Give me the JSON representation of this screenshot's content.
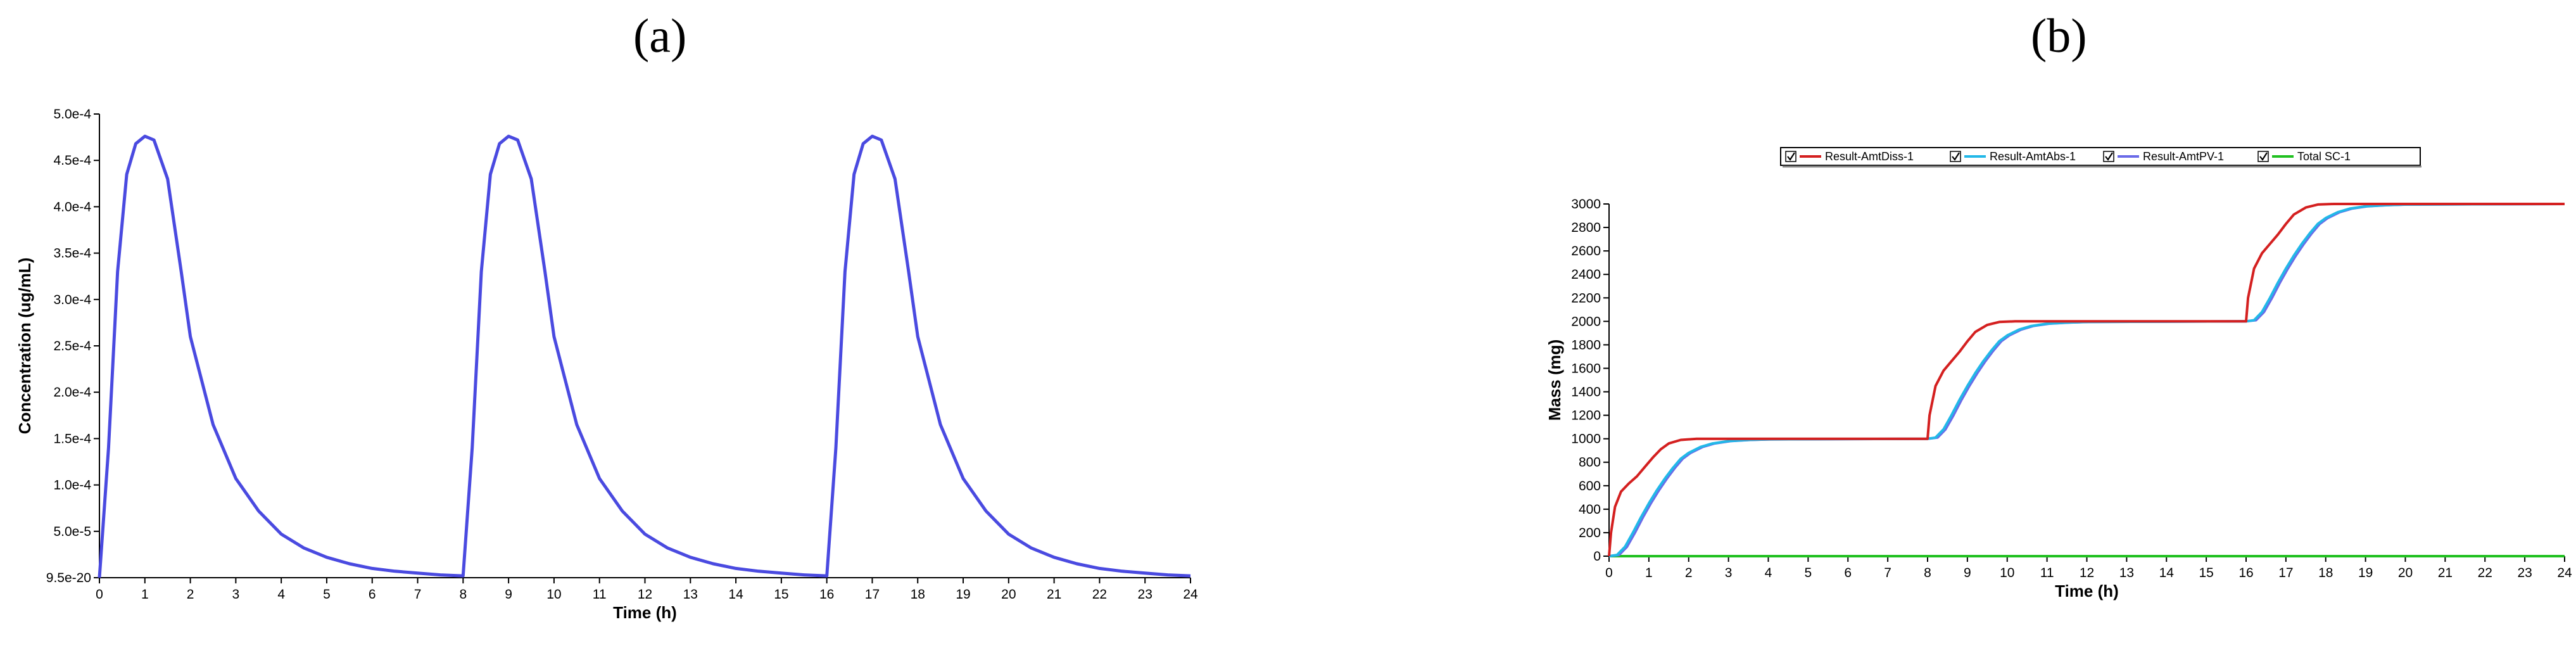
{
  "panels": {
    "a": {
      "label": "(a)"
    },
    "b": {
      "label": "(b)"
    }
  },
  "chart_data": [
    {
      "id": "a",
      "type": "line",
      "xlabel": "Time (h)",
      "ylabel": "Concentration (ug/mL)",
      "xlim": [
        0,
        24
      ],
      "ylim": [
        0,
        0.0005
      ],
      "xticks": [
        "0",
        "1",
        "2",
        "3",
        "4",
        "5",
        "6",
        "7",
        "8",
        "9",
        "10",
        "11",
        "12",
        "13",
        "14",
        "15",
        "16",
        "17",
        "18",
        "19",
        "20",
        "21",
        "22",
        "23",
        "24"
      ],
      "yticks": [
        {
          "value": 0,
          "label": "9.5e-20"
        },
        {
          "value": 5e-05,
          "label": "5.0e-5"
        },
        {
          "value": 0.0001,
          "label": "1.0e-4"
        },
        {
          "value": 0.00015,
          "label": "1.5e-4"
        },
        {
          "value": 0.0002,
          "label": "2.0e-4"
        },
        {
          "value": 0.00025,
          "label": "2.5e-4"
        },
        {
          "value": 0.0003,
          "label": "3.0e-4"
        },
        {
          "value": 0.00035,
          "label": "3.5e-4"
        },
        {
          "value": 0.0004,
          "label": "4.0e-4"
        },
        {
          "value": 0.00045,
          "label": "4.5e-4"
        },
        {
          "value": 0.0005,
          "label": "5.0e-4"
        }
      ],
      "series": [
        {
          "color": "#4a4ae0",
          "points": [
            [
              0,
              0
            ],
            [
              0.2,
              0.00014
            ],
            [
              0.4,
              0.00033
            ],
            [
              0.6,
              0.000435
            ],
            [
              0.8,
              0.000468
            ],
            [
              1.0,
              0.000476
            ],
            [
              1.2,
              0.000472
            ],
            [
              1.5,
              0.00043
            ],
            [
              1.8,
              0.00033
            ],
            [
              2.0,
              0.00026
            ],
            [
              2.5,
              0.000165
            ],
            [
              3.0,
              0.000107
            ],
            [
              3.5,
              7.2e-05
            ],
            [
              4.0,
              4.7e-05
            ],
            [
              4.5,
              3.2e-05
            ],
            [
              5.0,
              2.2e-05
            ],
            [
              5.5,
              1.5e-05
            ],
            [
              6.0,
              1e-05
            ],
            [
              6.5,
              7e-06
            ],
            [
              7.0,
              5e-06
            ],
            [
              7.5,
              3e-06
            ],
            [
              8.0,
              2e-06
            ],
            [
              8.2,
              0.00014
            ],
            [
              8.4,
              0.00033
            ],
            [
              8.6,
              0.000435
            ],
            [
              8.8,
              0.000468
            ],
            [
              9.0,
              0.000476
            ],
            [
              9.2,
              0.000472
            ],
            [
              9.5,
              0.00043
            ],
            [
              9.8,
              0.00033
            ],
            [
              10.0,
              0.00026
            ],
            [
              10.5,
              0.000165
            ],
            [
              11.0,
              0.000107
            ],
            [
              11.5,
              7.2e-05
            ],
            [
              12.0,
              4.7e-05
            ],
            [
              12.5,
              3.2e-05
            ],
            [
              13.0,
              2.2e-05
            ],
            [
              13.5,
              1.5e-05
            ],
            [
              14.0,
              1e-05
            ],
            [
              14.5,
              7e-06
            ],
            [
              15.0,
              5e-06
            ],
            [
              15.5,
              3e-06
            ],
            [
              16.0,
              2e-06
            ],
            [
              16.2,
              0.00014
            ],
            [
              16.4,
              0.00033
            ],
            [
              16.6,
              0.000435
            ],
            [
              16.8,
              0.000468
            ],
            [
              17.0,
              0.000476
            ],
            [
              17.2,
              0.000472
            ],
            [
              17.5,
              0.00043
            ],
            [
              17.8,
              0.00033
            ],
            [
              18.0,
              0.00026
            ],
            [
              18.5,
              0.000165
            ],
            [
              19.0,
              0.000107
            ],
            [
              19.5,
              7.2e-05
            ],
            [
              20.0,
              4.7e-05
            ],
            [
              20.5,
              3.2e-05
            ],
            [
              21.0,
              2.2e-05
            ],
            [
              21.5,
              1.5e-05
            ],
            [
              22.0,
              1e-05
            ],
            [
              22.5,
              7e-06
            ],
            [
              23.0,
              5e-06
            ],
            [
              23.5,
              3e-06
            ],
            [
              24.0,
              2e-06
            ]
          ]
        }
      ]
    },
    {
      "id": "b",
      "type": "line",
      "xlabel": "Time (h)",
      "ylabel": "Mass (mg)",
      "xlim": [
        0,
        24
      ],
      "ylim": [
        0,
        3000
      ],
      "grid": false,
      "legend_position": "top",
      "xticks": [
        "0",
        "1",
        "2",
        "3",
        "4",
        "5",
        "6",
        "7",
        "8",
        "9",
        "10",
        "11",
        "12",
        "13",
        "14",
        "15",
        "16",
        "17",
        "18",
        "19",
        "20",
        "21",
        "22",
        "23",
        "24"
      ],
      "yticks": [
        {
          "value": 0,
          "label": "0"
        },
        {
          "value": 200,
          "label": "200"
        },
        {
          "value": 400,
          "label": "400"
        },
        {
          "value": 600,
          "label": "600"
        },
        {
          "value": 800,
          "label": "800"
        },
        {
          "value": 1000,
          "label": "1000"
        },
        {
          "value": 1200,
          "label": "1200"
        },
        {
          "value": 1400,
          "label": "1400"
        },
        {
          "value": 1600,
          "label": "1600"
        },
        {
          "value": 1800,
          "label": "1800"
        },
        {
          "value": 2000,
          "label": "2000"
        },
        {
          "value": 2200,
          "label": "2200"
        },
        {
          "value": 2400,
          "label": "2400"
        },
        {
          "value": 2600,
          "label": "2600"
        },
        {
          "value": 2800,
          "label": "2800"
        },
        {
          "value": 3000,
          "label": "3000"
        }
      ],
      "series": [
        {
          "name": "Result-AmtDiss-1",
          "color": "#d42020",
          "points": [
            [
              0,
              0
            ],
            [
              0.05,
              200
            ],
            [
              0.15,
              420
            ],
            [
              0.3,
              550
            ],
            [
              0.5,
              620
            ],
            [
              0.7,
              680
            ],
            [
              0.9,
              760
            ],
            [
              1.1,
              840
            ],
            [
              1.3,
              910
            ],
            [
              1.5,
              960
            ],
            [
              1.8,
              990
            ],
            [
              2.2,
              1000
            ],
            [
              8.0,
              1000
            ],
            [
              8.05,
              1200
            ],
            [
              8.2,
              1450
            ],
            [
              8.4,
              1580
            ],
            [
              8.6,
              1660
            ],
            [
              8.8,
              1740
            ],
            [
              9.0,
              1830
            ],
            [
              9.2,
              1910
            ],
            [
              9.5,
              1970
            ],
            [
              9.8,
              1995
            ],
            [
              10.2,
              2000
            ],
            [
              16.0,
              2000
            ],
            [
              16.05,
              2200
            ],
            [
              16.2,
              2450
            ],
            [
              16.4,
              2580
            ],
            [
              16.6,
              2660
            ],
            [
              16.8,
              2740
            ],
            [
              17.0,
              2830
            ],
            [
              17.2,
              2910
            ],
            [
              17.5,
              2970
            ],
            [
              17.8,
              2995
            ],
            [
              18.2,
              3000
            ],
            [
              24,
              3000
            ]
          ]
        },
        {
          "name": "Result-AmtAbs-1",
          "color": "#22b8e8",
          "points": [
            [
              0,
              0
            ],
            [
              0.2,
              10
            ],
            [
              0.4,
              80
            ],
            [
              0.6,
              200
            ],
            [
              0.8,
              330
            ],
            [
              1.0,
              450
            ],
            [
              1.2,
              560
            ],
            [
              1.4,
              660
            ],
            [
              1.6,
              750
            ],
            [
              1.8,
              830
            ],
            [
              2.0,
              880
            ],
            [
              2.3,
              930
            ],
            [
              2.6,
              960
            ],
            [
              3.0,
              980
            ],
            [
              3.5,
              990
            ],
            [
              4.0,
              995
            ],
            [
              8.0,
              1000
            ],
            [
              8.2,
              1010
            ],
            [
              8.4,
              1080
            ],
            [
              8.6,
              1200
            ],
            [
              8.8,
              1330
            ],
            [
              9.0,
              1450
            ],
            [
              9.2,
              1560
            ],
            [
              9.4,
              1660
            ],
            [
              9.6,
              1750
            ],
            [
              9.8,
              1830
            ],
            [
              10.0,
              1880
            ],
            [
              10.3,
              1930
            ],
            [
              10.6,
              1960
            ],
            [
              11.0,
              1980
            ],
            [
              11.5,
              1990
            ],
            [
              12.0,
              1995
            ],
            [
              16.0,
              2000
            ],
            [
              16.2,
              2010
            ],
            [
              16.4,
              2080
            ],
            [
              16.6,
              2200
            ],
            [
              16.8,
              2330
            ],
            [
              17.0,
              2450
            ],
            [
              17.2,
              2560
            ],
            [
              17.4,
              2660
            ],
            [
              17.6,
              2750
            ],
            [
              17.8,
              2830
            ],
            [
              18.0,
              2880
            ],
            [
              18.3,
              2930
            ],
            [
              18.6,
              2960
            ],
            [
              19.0,
              2980
            ],
            [
              19.5,
              2990
            ],
            [
              20.0,
              2995
            ],
            [
              24,
              3000
            ]
          ]
        },
        {
          "name": "Result-AmtPV-1",
          "color": "#6a6ae8",
          "points": [
            [
              0,
              0
            ],
            [
              0.25,
              10
            ],
            [
              0.45,
              80
            ],
            [
              0.65,
              200
            ],
            [
              0.85,
              330
            ],
            [
              1.05,
              450
            ],
            [
              1.25,
              560
            ],
            [
              1.45,
              660
            ],
            [
              1.65,
              750
            ],
            [
              1.85,
              830
            ],
            [
              2.05,
              880
            ],
            [
              2.35,
              930
            ],
            [
              2.65,
              960
            ],
            [
              3.05,
              980
            ],
            [
              3.55,
              990
            ],
            [
              4.05,
              995
            ],
            [
              8.0,
              1000
            ],
            [
              8.25,
              1010
            ],
            [
              8.45,
              1080
            ],
            [
              8.65,
              1200
            ],
            [
              8.85,
              1330
            ],
            [
              9.05,
              1450
            ],
            [
              9.25,
              1560
            ],
            [
              9.45,
              1660
            ],
            [
              9.65,
              1750
            ],
            [
              9.85,
              1830
            ],
            [
              10.05,
              1880
            ],
            [
              10.35,
              1930
            ],
            [
              10.65,
              1960
            ],
            [
              11.05,
              1980
            ],
            [
              11.55,
              1990
            ],
            [
              12.05,
              1995
            ],
            [
              16.0,
              2000
            ],
            [
              16.25,
              2010
            ],
            [
              16.45,
              2080
            ],
            [
              16.65,
              2200
            ],
            [
              16.85,
              2330
            ],
            [
              17.05,
              2450
            ],
            [
              17.25,
              2560
            ],
            [
              17.45,
              2660
            ],
            [
              17.65,
              2750
            ],
            [
              17.85,
              2830
            ],
            [
              18.05,
              2880
            ],
            [
              18.35,
              2930
            ],
            [
              18.65,
              2960
            ],
            [
              19.05,
              2980
            ],
            [
              19.55,
              2990
            ],
            [
              20.05,
              2995
            ],
            [
              24,
              3000
            ]
          ]
        },
        {
          "name": "Total SC-1",
          "color": "#20c020",
          "points": [
            [
              0,
              0
            ],
            [
              24,
              0
            ]
          ]
        }
      ]
    }
  ]
}
